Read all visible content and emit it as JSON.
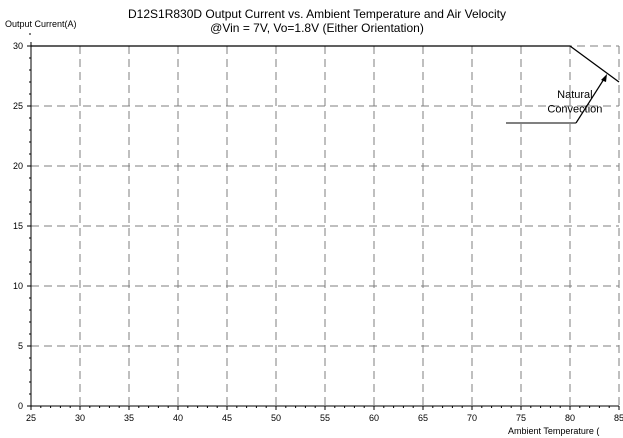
{
  "chart_data": {
    "type": "line",
    "title": "D12S1R830D Output Current vs. Ambient Temperature and Air Velocity",
    "subtitle": "@Vin = 7V, Vo=1.8V (Either Orientation)",
    "ylabel": "Output Current(A)",
    "xlabel": "Ambient Temperature (",
    "xlim": [
      25,
      85
    ],
    "ylim": [
      0,
      32
    ],
    "x_ticks": [
      25,
      30,
      35,
      40,
      45,
      50,
      55,
      60,
      65,
      70,
      75,
      80,
      85
    ],
    "y_ticks": [
      0,
      5,
      10,
      15,
      20,
      25,
      30
    ],
    "grid": true,
    "series": [
      {
        "x": [
          25,
          80,
          85
        ],
        "y": [
          30,
          30,
          27
        ]
      }
    ],
    "annotations": [
      {
        "text": "Natural",
        "x": 80.5,
        "y": 26
      },
      {
        "text": "Convection",
        "x": 80.5,
        "y": 24.8
      }
    ],
    "colors": {
      "line": "#000000",
      "grid": "#7f7f7f"
    }
  }
}
